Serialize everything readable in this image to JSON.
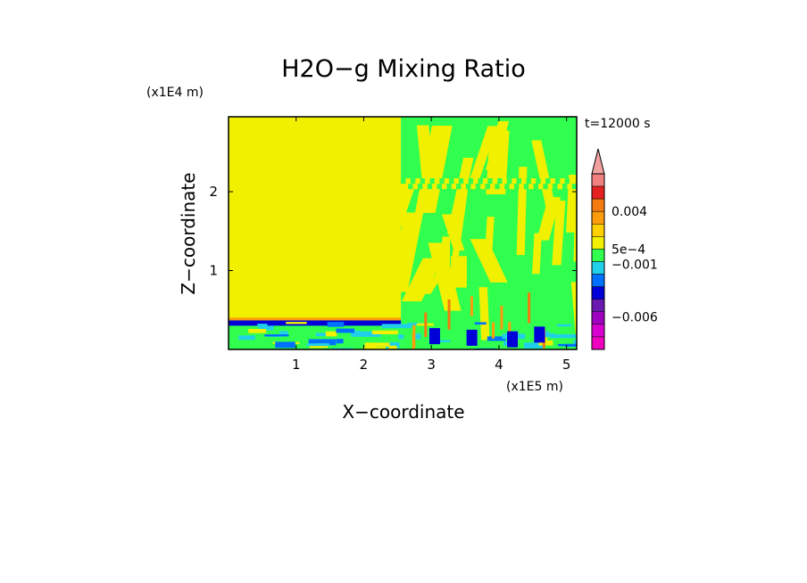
{
  "chart_data": {
    "type": "heatmap",
    "title": "H2O−g Mixing Ratio",
    "time_label": "t=12000 s",
    "xlabel": "X−coordinate",
    "ylabel": "Z−coordinate",
    "x_unit": "(x1E5 m)",
    "y_unit": "(x1E4 m)",
    "xlim": [
      0,
      5.15
    ],
    "ylim": [
      0,
      2.95
    ],
    "x_ticks": [
      {
        "value": 1,
        "label": "1"
      },
      {
        "value": 2,
        "label": "2"
      },
      {
        "value": 3,
        "label": "3"
      },
      {
        "value": 4,
        "label": "4"
      },
      {
        "value": 5,
        "label": "5"
      }
    ],
    "y_ticks": [
      {
        "value": 1,
        "label": "1"
      },
      {
        "value": 2,
        "label": "2"
      }
    ],
    "colorbar": {
      "extend_max_color": "#f2a0a0",
      "colors": [
        "#f08080",
        "#e52020",
        "#f57a10",
        "#fa9c0c",
        "#ffd000",
        "#f0f000",
        "#30ff50",
        "#20d0e8",
        "#0070ff",
        "#0000d8",
        "#6a1ab0",
        "#a000c0",
        "#d800d0",
        "#f000c0"
      ],
      "labels": [
        {
          "text": "0.004",
          "level": 3
        },
        {
          "text": "5e−4",
          "level": 6
        },
        {
          "text": "−0.001",
          "level": 7.2
        },
        {
          "text": "−0.006",
          "level": 11.4
        }
      ]
    },
    "field_regions": [
      {
        "x0": 0,
        "x1": 2.55,
        "z0": 0.38,
        "z1": 2.95,
        "color": "#f0f000"
      },
      {
        "x0": 2.55,
        "x1": 5.15,
        "z0": 0.0,
        "z1": 2.95,
        "color": "#30ff50"
      },
      {
        "x0": 0,
        "x1": 2.55,
        "z0": 0.0,
        "z1": 0.38,
        "color": "#30ff50"
      }
    ]
  }
}
